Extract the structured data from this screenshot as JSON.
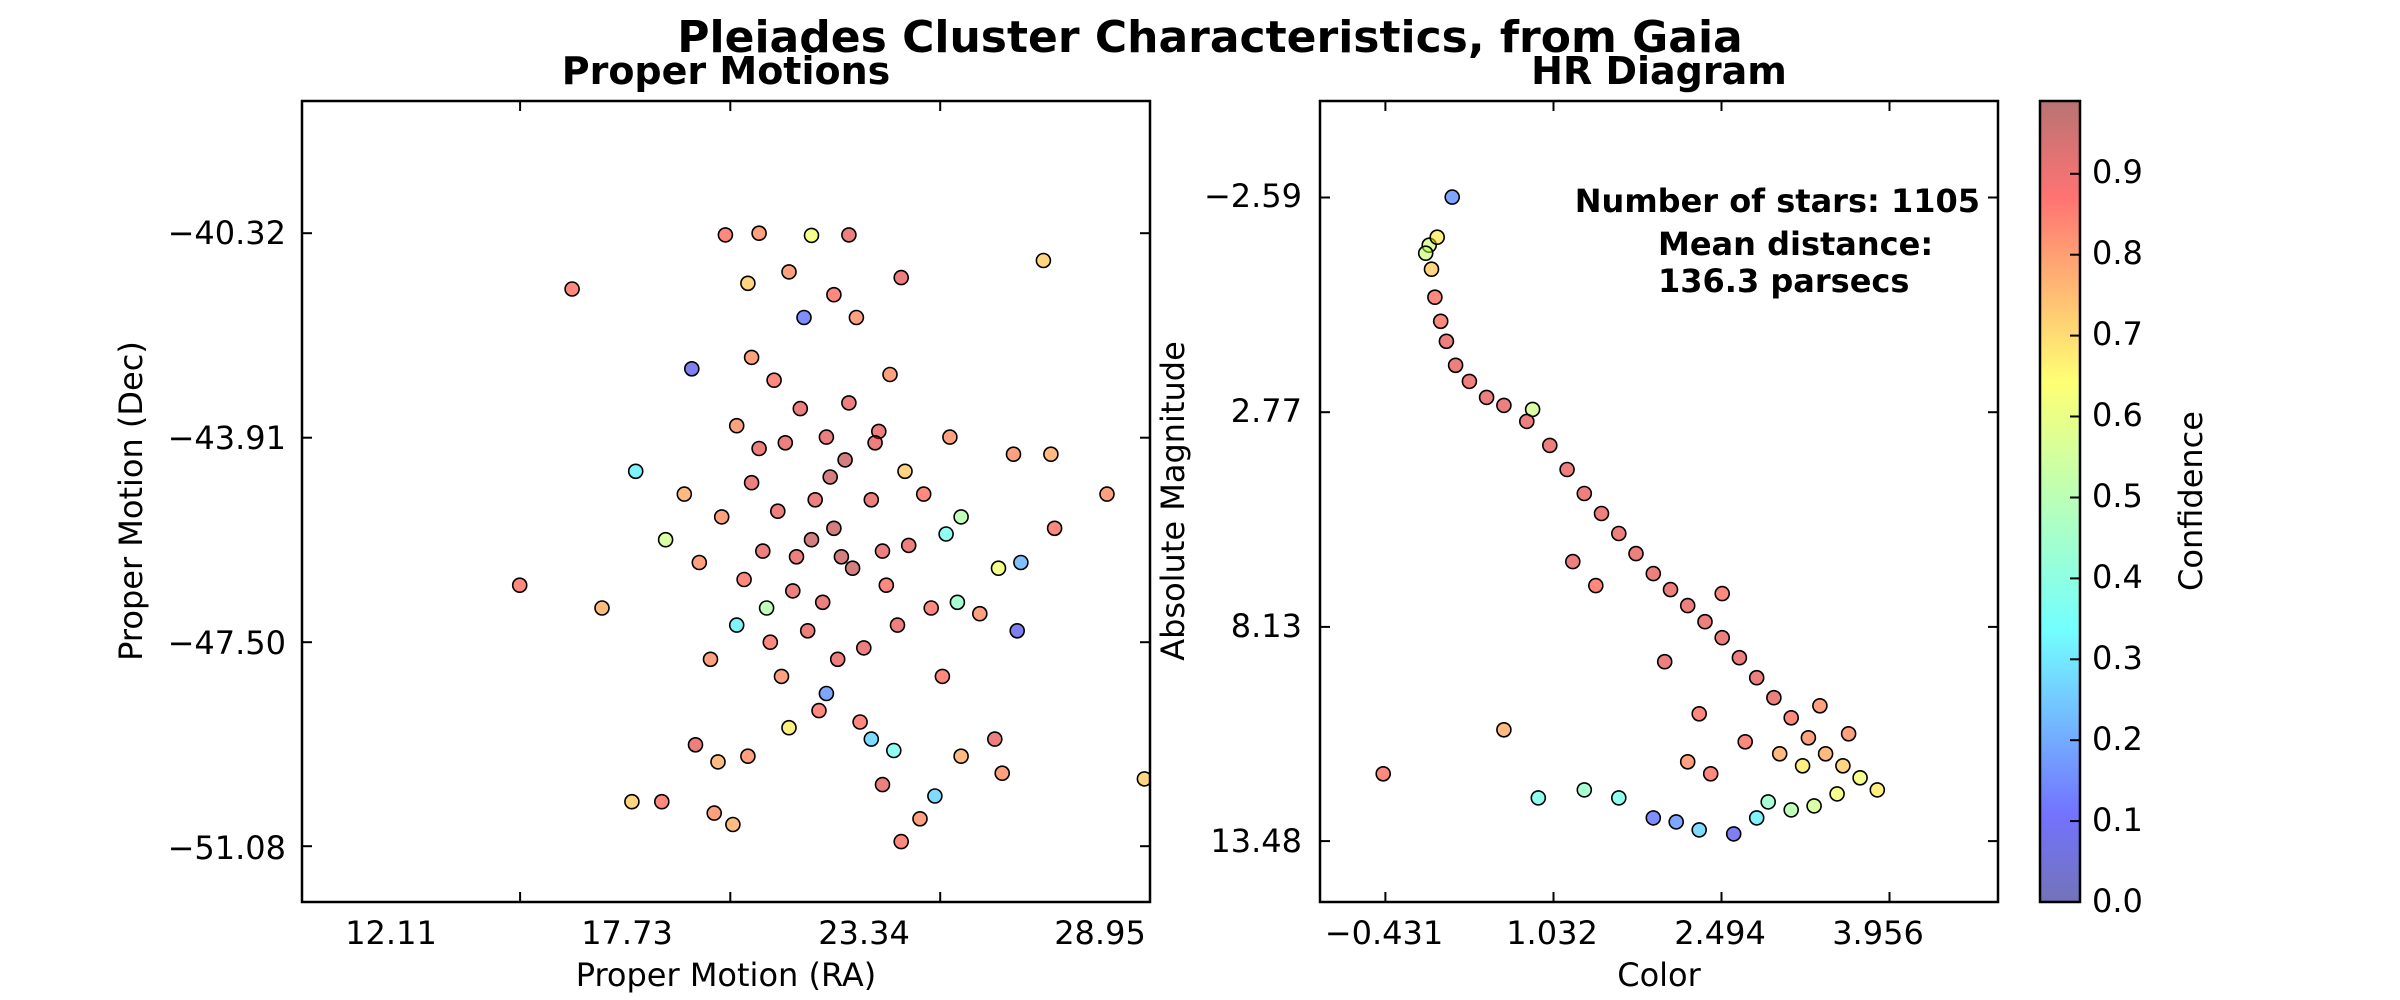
{
  "figure": {
    "title": "Pleiades Cluster Characteristics, from Gaia"
  },
  "colors": {
    "point_edge": "#000000",
    "colormap": "jet",
    "cmap_stops": [
      "#00007f",
      "#0000ff",
      "#007fff",
      "#00ffff",
      "#7fff7f",
      "#ffff00",
      "#ff7f00",
      "#ff0000",
      "#7f0000"
    ],
    "point_alpha": 0.5
  },
  "chart_data": [
    {
      "type": "scatter",
      "title": "Proper Motions",
      "xlabel": "Proper Motion (RA)",
      "ylabel": "Proper Motion (Dec)",
      "xticks": [
        "12.11",
        "17.73",
        "23.34",
        "28.95"
      ],
      "yticks": [
        "-40.32",
        "-43.91",
        "-47.50",
        "-51.08"
      ],
      "xtick_values": [
        12.11,
        17.73,
        23.34,
        28.95
      ],
      "ytick_values": [
        -40.32,
        -43.91,
        -47.5,
        -51.08
      ],
      "xlim": [
        6.28,
        28.95
      ],
      "ylim": [
        -52.06,
        -38.0
      ],
      "grid": false,
      "color_by": "confidence",
      "points": [
        [
          17.6,
          -40.35,
          0.85
        ],
        [
          18.5,
          -40.32,
          0.8
        ],
        [
          19.9,
          -40.36,
          0.6
        ],
        [
          20.9,
          -40.35,
          0.9
        ],
        [
          13.5,
          -41.3,
          0.85
        ],
        [
          22.3,
          -41.1,
          0.9
        ],
        [
          18.2,
          -41.2,
          0.7
        ],
        [
          19.3,
          -41.0,
          0.8
        ],
        [
          26.1,
          -40.8,
          0.7
        ],
        [
          16.7,
          -42.7,
          0.1
        ],
        [
          15.2,
          -44.5,
          0.35
        ],
        [
          12.1,
          -46.5,
          0.85
        ],
        [
          14.3,
          -46.9,
          0.75
        ],
        [
          16.0,
          -45.7,
          0.55
        ],
        [
          27.8,
          -44.9,
          0.8
        ],
        [
          26.4,
          -45.5,
          0.85
        ],
        [
          26.3,
          -44.2,
          0.75
        ],
        [
          25.3,
          -44.2,
          0.8
        ],
        [
          25.5,
          -46.1,
          0.25
        ],
        [
          25.4,
          -47.3,
          0.1
        ],
        [
          24.9,
          -46.2,
          0.6
        ],
        [
          23.9,
          -45.3,
          0.5
        ],
        [
          23.8,
          -46.8,
          0.45
        ],
        [
          21.1,
          -41.8,
          0.8
        ],
        [
          21.7,
          -43.8,
          0.9
        ],
        [
          20.5,
          -41.4,
          0.85
        ],
        [
          19.7,
          -41.8,
          0.15
        ],
        [
          18.3,
          -42.5,
          0.8
        ],
        [
          22.4,
          -44.5,
          0.7
        ],
        [
          23.5,
          -45.6,
          0.4
        ],
        [
          17.9,
          -47.2,
          0.35
        ],
        [
          18.7,
          -46.9,
          0.5
        ],
        [
          20.3,
          -48.4,
          0.2
        ],
        [
          21.5,
          -49.2,
          0.3
        ],
        [
          22.1,
          -49.4,
          0.4
        ],
        [
          23.9,
          -49.5,
          0.75
        ],
        [
          24.8,
          -49.2,
          0.9
        ],
        [
          25.0,
          -49.8,
          0.8
        ],
        [
          23.2,
          -50.2,
          0.3
        ],
        [
          22.8,
          -50.6,
          0.8
        ],
        [
          22.3,
          -51.0,
          0.85
        ],
        [
          21.8,
          -50.0,
          0.9
        ],
        [
          15.1,
          -50.3,
          0.7
        ],
        [
          15.9,
          -50.3,
          0.85
        ],
        [
          17.3,
          -50.5,
          0.8
        ],
        [
          17.8,
          -50.7,
          0.75
        ],
        [
          18.2,
          -49.5,
          0.8
        ],
        [
          16.8,
          -49.3,
          0.9
        ],
        [
          19.3,
          -49.0,
          0.65
        ],
        [
          28.8,
          -49.9,
          0.7
        ],
        [
          20.0,
          -45.0,
          0.9
        ],
        [
          20.5,
          -45.5,
          0.95
        ],
        [
          19.5,
          -46.0,
          0.9
        ],
        [
          21.0,
          -46.2,
          0.95
        ],
        [
          20.2,
          -46.8,
          0.9
        ],
        [
          19.0,
          -45.2,
          0.9
        ],
        [
          21.5,
          -45.0,
          0.9
        ],
        [
          20.8,
          -44.3,
          0.95
        ],
        [
          19.2,
          -44.0,
          0.9
        ],
        [
          18.6,
          -45.9,
          0.9
        ],
        [
          21.9,
          -46.5,
          0.85
        ],
        [
          19.8,
          -47.3,
          0.9
        ],
        [
          20.6,
          -47.8,
          0.9
        ],
        [
          18.3,
          -44.7,
          0.9
        ],
        [
          22.5,
          -45.8,
          0.9
        ],
        [
          19.6,
          -43.4,
          0.9
        ],
        [
          20.9,
          -43.3,
          0.9
        ],
        [
          18.1,
          -46.4,
          0.85
        ],
        [
          21.3,
          -47.6,
          0.9
        ],
        [
          22.9,
          -44.9,
          0.85
        ],
        [
          17.5,
          -45.3,
          0.8
        ],
        [
          23.1,
          -46.9,
          0.85
        ],
        [
          17.9,
          -43.7,
          0.8
        ],
        [
          20.1,
          -48.7,
          0.85
        ],
        [
          19.1,
          -48.1,
          0.8
        ],
        [
          21.2,
          -48.9,
          0.85
        ],
        [
          18.9,
          -42.9,
          0.85
        ],
        [
          22.0,
          -42.8,
          0.8
        ],
        [
          23.6,
          -43.9,
          0.8
        ],
        [
          17.2,
          -47.8,
          0.8
        ],
        [
          20.4,
          -44.6,
          0.95
        ],
        [
          19.4,
          -46.6,
          0.9
        ],
        [
          21.6,
          -44.0,
          0.9
        ],
        [
          20.7,
          -46.0,
          0.95
        ],
        [
          18.8,
          -47.5,
          0.85
        ],
        [
          22.2,
          -47.2,
          0.9
        ],
        [
          19.9,
          -45.7,
          0.95
        ],
        [
          20.3,
          -43.9,
          0.9
        ],
        [
          21.8,
          -45.9,
          0.9
        ],
        [
          18.5,
          -44.1,
          0.9
        ],
        [
          17.4,
          -49.6,
          0.75
        ],
        [
          24.4,
          -47.0,
          0.8
        ],
        [
          16.9,
          -46.1,
          0.8
        ],
        [
          23.4,
          -48.1,
          0.85
        ],
        [
          16.5,
          -44.9,
          0.75
        ]
      ]
    },
    {
      "type": "scatter",
      "title": "HR Diagram",
      "xlabel": "Color",
      "ylabel": "Absolute Magnitude",
      "xticks": [
        "-0.431",
        "1.032",
        "2.494",
        "3.956"
      ],
      "yticks": [
        "-2.59",
        "2.77",
        "8.13",
        "13.48"
      ],
      "xtick_values": [
        -0.431,
        1.032,
        2.494,
        3.956
      ],
      "ytick_values": [
        -2.59,
        2.77,
        8.13,
        13.48
      ],
      "xlim": [
        -1.0,
        4.9
      ],
      "ylim": [
        15.0,
        -5.0
      ],
      "grid": false,
      "color_by": "confidence",
      "annotation": {
        "stars_line": "Number of stars: 1105",
        "distance_line": "Mean distance:",
        "distance_value": "136.3 parsecs"
      },
      "colorbar": {
        "label": "Confidence",
        "ticks": [
          "0.0",
          "0.1",
          "0.2",
          "0.3",
          "0.4",
          "0.5",
          "0.6",
          "0.7",
          "0.8",
          "0.9"
        ],
        "tick_values": [
          0.0,
          0.1,
          0.2,
          0.3,
          0.4,
          0.5,
          0.6,
          0.7,
          0.8,
          0.9
        ],
        "range": [
          0.0,
          0.99
        ]
      },
      "points": [
        [
          0.15,
          -2.6,
          0.2
        ],
        [
          0.02,
          -1.6,
          0.65
        ],
        [
          -0.05,
          -1.4,
          0.55
        ],
        [
          -0.08,
          -1.2,
          0.55
        ],
        [
          -0.03,
          -0.8,
          0.7
        ],
        [
          0.0,
          -0.1,
          0.85
        ],
        [
          0.05,
          0.5,
          0.85
        ],
        [
          0.1,
          1.0,
          0.9
        ],
        [
          0.18,
          1.6,
          0.9
        ],
        [
          0.3,
          2.0,
          0.9
        ],
        [
          0.45,
          2.4,
          0.9
        ],
        [
          0.6,
          2.6,
          0.9
        ],
        [
          0.8,
          3.0,
          0.9
        ],
        [
          1.0,
          3.6,
          0.9
        ],
        [
          1.15,
          4.2,
          0.9
        ],
        [
          1.3,
          4.8,
          0.9
        ],
        [
          1.45,
          5.3,
          0.9
        ],
        [
          1.6,
          5.8,
          0.9
        ],
        [
          1.75,
          6.3,
          0.9
        ],
        [
          1.9,
          6.8,
          0.9
        ],
        [
          2.05,
          7.2,
          0.9
        ],
        [
          2.2,
          7.6,
          0.9
        ],
        [
          2.35,
          8.0,
          0.9
        ],
        [
          2.5,
          8.4,
          0.9
        ],
        [
          2.65,
          8.9,
          0.9
        ],
        [
          2.8,
          9.4,
          0.9
        ],
        [
          2.95,
          9.9,
          0.9
        ],
        [
          3.1,
          10.4,
          0.85
        ],
        [
          3.25,
          10.9,
          0.8
        ],
        [
          3.4,
          11.3,
          0.75
        ],
        [
          3.55,
          11.6,
          0.7
        ],
        [
          3.7,
          11.9,
          0.6
        ],
        [
          3.85,
          12.2,
          0.65
        ],
        [
          0.85,
          2.7,
          0.55
        ],
        [
          1.4,
          7.1,
          0.85
        ],
        [
          0.6,
          10.7,
          0.75
        ],
        [
          -0.45,
          11.8,
          0.85
        ],
        [
          1.6,
          12.4,
          0.4
        ],
        [
          1.9,
          12.9,
          0.15
        ],
        [
          2.1,
          13.0,
          0.2
        ],
        [
          2.3,
          13.2,
          0.3
        ],
        [
          2.6,
          13.3,
          0.1
        ],
        [
          2.8,
          12.9,
          0.35
        ],
        [
          2.9,
          12.5,
          0.45
        ],
        [
          3.1,
          12.7,
          0.5
        ],
        [
          3.3,
          12.6,
          0.55
        ],
        [
          3.5,
          12.3,
          0.6
        ],
        [
          2.4,
          11.8,
          0.85
        ],
        [
          2.2,
          11.5,
          0.8
        ],
        [
          2.7,
          11.0,
          0.85
        ],
        [
          3.0,
          11.3,
          0.75
        ],
        [
          3.2,
          11.6,
          0.65
        ],
        [
          1.3,
          12.2,
          0.45
        ],
        [
          0.9,
          12.4,
          0.4
        ],
        [
          3.6,
          10.8,
          0.8
        ],
        [
          2.0,
          9.0,
          0.9
        ],
        [
          2.3,
          10.3,
          0.85
        ],
        [
          1.2,
          6.5,
          0.9
        ],
        [
          2.5,
          7.3,
          0.85
        ],
        [
          3.35,
          10.1,
          0.8
        ]
      ]
    }
  ]
}
